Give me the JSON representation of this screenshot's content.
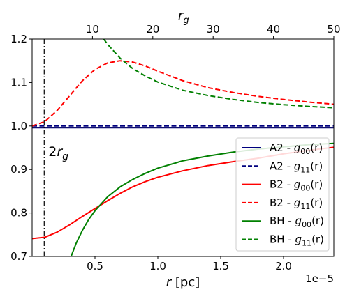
{
  "chart_data": {
    "type": "line",
    "xlabel": "r [pc]",
    "x_offset_label": "1e−5",
    "top_xlabel": "r_g",
    "xlim": [
      0.0,
      2.4
    ],
    "ylim": [
      0.7,
      1.2
    ],
    "x_unit_scale": "1e-5",
    "xticks": [
      0.5,
      1.0,
      1.5,
      2.0
    ],
    "xtick_labels": [
      "0.5",
      "1.0",
      "1.5",
      "2.0"
    ],
    "yticks": [
      0.7,
      0.8,
      0.9,
      1.0,
      1.1,
      1.2
    ],
    "ytick_labels": [
      "0.7",
      "0.8",
      "0.9",
      "1.0",
      "1.1",
      "1.2"
    ],
    "top_xticks_rg": [
      10,
      20,
      30,
      40,
      50
    ],
    "top_xtick_labels": [
      "10",
      "20",
      "30",
      "40",
      "50"
    ],
    "top_axis_x_per_rg": 0.048,
    "vline": {
      "x": 0.096,
      "label": "2r_g",
      "style": "dashdot",
      "color": "#000000"
    },
    "hline": {
      "y": 0.9965,
      "color": "#000000"
    },
    "legend_placement": "lower right",
    "grid": false,
    "series": [
      {
        "name": "A2 - g00(r)",
        "legend_main": "A2 - ",
        "legend_sym": "g",
        "legend_sub": "00",
        "legend_tail": "(r)",
        "color": "#00007f",
        "dash": "solid",
        "x": [
          0.0,
          2.4
        ],
        "y": [
          0.996,
          0.996
        ]
      },
      {
        "name": "A2 - g11(r)",
        "legend_main": "A2 - ",
        "legend_sym": "g",
        "legend_sub": "11",
        "legend_tail": "(r)",
        "color": "#00007f",
        "dash": "dashed",
        "x": [
          0.0,
          2.4
        ],
        "y": [
          1.0,
          1.0
        ]
      },
      {
        "name": "B2 - g00(r)",
        "legend_main": "B2 - ",
        "legend_sym": "g",
        "legend_sub": "00",
        "legend_tail": "(r)",
        "color": "#ff0000",
        "dash": "solid",
        "x": [
          0.0,
          0.1,
          0.2,
          0.3,
          0.4,
          0.5,
          0.6,
          0.7,
          0.8,
          0.9,
          1.0,
          1.2,
          1.4,
          1.6,
          1.8,
          2.0,
          2.2,
          2.4
        ],
        "y": [
          0.741,
          0.744,
          0.756,
          0.773,
          0.792,
          0.81,
          0.828,
          0.845,
          0.86,
          0.872,
          0.882,
          0.897,
          0.909,
          0.918,
          0.926,
          0.936,
          0.944,
          0.951
        ]
      },
      {
        "name": "B2 - g11(r)",
        "legend_main": "B2 - ",
        "legend_sym": "g",
        "legend_sub": "11",
        "legend_tail": "(r)",
        "color": "#ff0000",
        "dash": "dashed",
        "x": [
          0.0,
          0.1,
          0.2,
          0.3,
          0.4,
          0.5,
          0.6,
          0.7,
          0.8,
          0.9,
          1.0,
          1.2,
          1.4,
          1.6,
          1.8,
          2.0,
          2.2,
          2.4
        ],
        "y": [
          1.0,
          1.01,
          1.036,
          1.07,
          1.104,
          1.13,
          1.145,
          1.15,
          1.147,
          1.138,
          1.126,
          1.104,
          1.088,
          1.077,
          1.068,
          1.061,
          1.055,
          1.05
        ]
      },
      {
        "name": "BH - g00(r)",
        "legend_main": "BH - ",
        "legend_sym": "g",
        "legend_sub": "00",
        "legend_tail": "(r)",
        "color": "#008000",
        "dash": "solid",
        "x": [
          0.31,
          0.35,
          0.4,
          0.45,
          0.5,
          0.6,
          0.7,
          0.8,
          0.9,
          1.0,
          1.2,
          1.4,
          1.6,
          1.8,
          2.0,
          2.2,
          2.4
        ],
        "y": [
          0.7,
          0.73,
          0.76,
          0.785,
          0.805,
          0.837,
          0.86,
          0.877,
          0.891,
          0.903,
          0.92,
          0.931,
          0.94,
          0.947,
          0.952,
          0.957,
          0.96
        ]
      },
      {
        "name": "BH - g11(r)",
        "legend_main": "BH - ",
        "legend_sym": "g",
        "legend_sub": "11",
        "legend_tail": "(r)",
        "color": "#008000",
        "dash": "dashed",
        "x": [
          0.57,
          0.6,
          0.7,
          0.8,
          0.9,
          1.0,
          1.2,
          1.4,
          1.6,
          1.8,
          2.0,
          2.2,
          2.4
        ],
        "y": [
          1.2,
          1.188,
          1.156,
          1.132,
          1.115,
          1.101,
          1.082,
          1.07,
          1.061,
          1.054,
          1.049,
          1.045,
          1.042
        ]
      }
    ]
  }
}
